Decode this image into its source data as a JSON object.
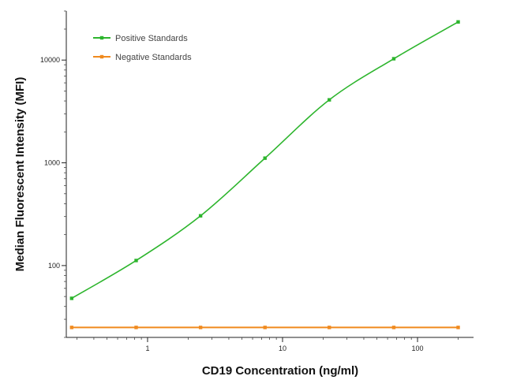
{
  "chart_data": {
    "type": "scatter",
    "title": "",
    "xlabel": "CD19 Concentration (ng/ml)",
    "ylabel": "Median  Fluorescent Intensity  (MFI)",
    "xscale": "log",
    "yscale": "log",
    "xlim": [
      0.25,
      260
    ],
    "ylim": [
      20,
      30000
    ],
    "x_ticks": [
      1,
      10,
      100
    ],
    "x_tick_labels": [
      "1",
      "10",
      "100"
    ],
    "y_ticks": [
      100,
      1000,
      10000
    ],
    "y_tick_labels": [
      "100",
      "1000",
      "10000"
    ],
    "grid": false,
    "legend_position": "top-left",
    "series": [
      {
        "name": "Positive Standards",
        "color": "#2db52d",
        "x": [
          0.274,
          0.823,
          2.47,
          7.41,
          22.2,
          66.7,
          200
        ],
        "y": [
          48,
          112,
          305,
          1110,
          4100,
          10300,
          23500
        ],
        "fit_curve": true
      },
      {
        "name": "Negative Standards",
        "color": "#f08a1e",
        "x": [
          0.274,
          0.823,
          2.47,
          7.41,
          22.2,
          66.7,
          200
        ],
        "y": [
          25,
          25,
          25,
          25,
          25,
          25,
          25
        ],
        "fit_curve": false
      }
    ]
  }
}
